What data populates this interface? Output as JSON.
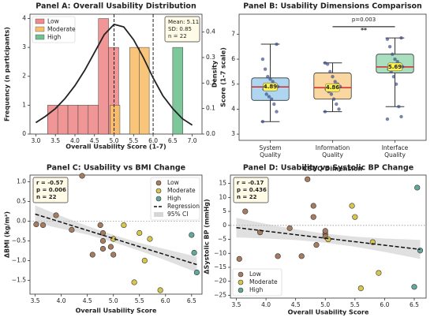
{
  "chart_data": [
    {
      "type": "histogram",
      "title": "Panel A: Overall Usability Distribution",
      "xlabel": "Overall Usability Score (1-7)",
      "ylabel": "Frequency (n participants)",
      "y2label": "Density",
      "xlim": [
        2.85,
        7.25
      ],
      "xticks": [
        {
          "value": 3,
          "label": "3.0"
        },
        3.5,
        {
          "value": 4,
          "label": "4.0"
        },
        4.5,
        {
          "value": 5,
          "label": "5.0"
        },
        5.5,
        {
          "value": 6,
          "label": "6.0"
        },
        6.5,
        {
          "value": 7,
          "label": "7.0"
        }
      ],
      "ylim": [
        0,
        4.15
      ],
      "yticks": [
        0,
        1,
        2,
        3,
        4
      ],
      "y2lim": [
        0,
        0.47
      ],
      "y2ticks": [
        {
          "value": 0,
          "label": "0.0"
        },
        0.1,
        0.2,
        0.3,
        0.4
      ],
      "series": [
        {
          "name": "Low",
          "color": "#ef8b8b",
          "bins": [
            3.3,
            3.56,
            3.82,
            4.08,
            4.34,
            4.6,
            4.86,
            5.12
          ],
          "values": [
            1,
            1,
            1,
            1,
            1,
            4,
            3
          ]
        },
        {
          "name": "Moderate",
          "color": "#f7bf6b",
          "bins": [
            4.9,
            5.15,
            5.4,
            5.65,
            5.9
          ],
          "values": [
            1,
            0,
            3,
            3
          ]
        },
        {
          "name": "High",
          "color": "#6fc18f",
          "bins": [
            6.5,
            6.76
          ],
          "values": [
            3
          ]
        }
      ],
      "density": {
        "color": "#222222",
        "axis": "y2",
        "x": [
          3.0,
          3.25,
          3.5,
          3.75,
          4.0,
          4.25,
          4.5,
          4.75,
          5.0,
          5.25,
          5.5,
          5.75,
          6.0,
          6.25,
          6.5,
          6.75,
          7.0
        ],
        "values": [
          0.045,
          0.07,
          0.1,
          0.14,
          0.19,
          0.25,
          0.32,
          0.39,
          0.43,
          0.42,
          0.37,
          0.3,
          0.22,
          0.15,
          0.1,
          0.06,
          0.035
        ]
      },
      "vlines": [
        5.0,
        6.0
      ],
      "stats": [
        "Mean: 5.11",
        "SD: 0.85",
        "n = 22"
      ],
      "legend": "upper left"
    },
    {
      "type": "box",
      "title": "Panel B: Usability Dimensions Comparison",
      "xlabel": "CSUQ Dimension",
      "ylabel": "Score (1-7 scale)",
      "categories": [
        "System Quality",
        "Information Quality",
        "Interface Quality"
      ],
      "ylim": [
        2.75,
        7.8
      ],
      "yticks": [
        3,
        4,
        5,
        6,
        7
      ],
      "point_color": "#34447f",
      "median_color": "#d62728",
      "boxes": [
        {
          "color": "#aed6f1",
          "whislo": 3.5,
          "q1": 4.35,
          "med": 4.89,
          "q3": 5.25,
          "whishi": 6.6,
          "points": [
            3.5,
            3.9,
            4.2,
            4.4,
            4.5,
            4.6,
            4.8,
            4.9,
            5.0,
            5.1,
            5.2,
            5.3,
            5.6,
            6.0,
            6.6
          ]
        },
        {
          "color": "#fad7a0",
          "whislo": 3.9,
          "q1": 4.4,
          "med": 4.86,
          "q3": 5.45,
          "whishi": 5.85,
          "points": [
            3.9,
            4.0,
            4.2,
            4.4,
            4.6,
            4.7,
            4.8,
            4.9,
            5.0,
            5.1,
            5.3,
            5.5,
            5.8,
            5.85
          ]
        },
        {
          "color": "#a9dfbf",
          "whislo": 4.1,
          "q1": 5.45,
          "med": 5.69,
          "q3": 6.2,
          "whishi": 6.85,
          "points": [
            3.6,
            3.7,
            4.1,
            5.0,
            5.3,
            5.5,
            5.6,
            5.7,
            5.8,
            5.9,
            6.0,
            6.2,
            6.5,
            6.8,
            6.85
          ]
        }
      ],
      "significance": {
        "from": 1,
        "to": 2,
        "y": 7.3,
        "label": "p=0.003",
        "stars": "**"
      }
    },
    {
      "type": "scatter",
      "title": "Panel C: Usability vs BMI Change",
      "xlabel": "Overall Usability Score",
      "ylabel": "ΔBMI (kg/m²)",
      "xlim": [
        3.4,
        6.7
      ],
      "xticks": [
        3.5,
        {
          "value": 4,
          "label": "4.0"
        },
        4.5,
        {
          "value": 5,
          "label": "5.0"
        },
        5.5,
        {
          "value": 6,
          "label": "6.0"
        },
        6.5
      ],
      "ylim": [
        -1.85,
        1.17
      ],
      "yticks": [
        {
          "value": 1,
          "label": "1.0"
        },
        0.5,
        {
          "value": 0,
          "label": "0.0"
        },
        {
          "value": -0.5,
          "label": "−0.5"
        },
        {
          "value": -1,
          "label": "−1.0"
        },
        {
          "value": -1.5,
          "label": "−1.5"
        }
      ],
      "hline": 0,
      "series": [
        {
          "name": "Low",
          "color": "#a57c5f",
          "x": [
            3.52,
            3.65,
            3.9,
            4.2,
            4.4,
            4.6,
            4.75,
            4.8,
            4.8,
            4.8,
            4.95,
            5.0
          ],
          "values": [
            -0.08,
            -0.1,
            0.15,
            -0.22,
            1.15,
            -0.85,
            -0.1,
            -0.3,
            -0.5,
            -0.7,
            -0.65,
            -0.85
          ]
        },
        {
          "name": "Moderate",
          "color": "#d6c64e",
          "x": [
            5.0,
            5.2,
            5.4,
            5.5,
            5.6,
            5.7,
            5.9
          ],
          "values": [
            -0.45,
            -0.1,
            -1.55,
            -0.3,
            -1.0,
            -0.45,
            -1.75
          ]
        },
        {
          "name": "High",
          "color": "#62a89c",
          "x": [
            6.5,
            6.55,
            6.6
          ],
          "values": [
            -0.35,
            -0.8,
            -1.3
          ]
        }
      ],
      "regression": {
        "name": "Regression",
        "x": [
          3.5,
          6.6
        ],
        "values": [
          0.18,
          -1.1
        ]
      },
      "ci": {
        "name": "95% CI",
        "x": [
          3.5,
          4.0,
          4.5,
          5.0,
          5.5,
          6.0,
          6.6
        ],
        "lower": [
          -0.04,
          -0.19,
          -0.34,
          -0.53,
          -0.75,
          -0.99,
          -1.3
        ],
        "upper": [
          0.4,
          0.13,
          -0.12,
          -0.35,
          -0.55,
          -0.71,
          -0.9
        ]
      },
      "stats": [
        "r = -0.57",
        "p = 0.006",
        "n = 22"
      ],
      "legend": "upper right"
    },
    {
      "type": "scatter",
      "title": "Panel D: Usability vs Systolic BP Change",
      "xlabel": "Overall Usability Score",
      "ylabel": "ΔSystolic BP (mmHg)",
      "xlim": [
        3.4,
        6.7
      ],
      "xticks": [
        3.5,
        {
          "value": 4,
          "label": "4.0"
        },
        4.5,
        {
          "value": 5,
          "label": "5.0"
        },
        5.5,
        {
          "value": 6,
          "label": "6.0"
        },
        6.5
      ],
      "ylim": [
        -26,
        18
      ],
      "yticks": [
        15,
        10,
        5,
        0,
        {
          "value": -5,
          "label": "−5"
        },
        {
          "value": -10,
          "label": "−10"
        },
        {
          "value": -15,
          "label": "−15"
        },
        {
          "value": -20,
          "label": "−20"
        },
        {
          "value": -25,
          "label": "−25"
        }
      ],
      "hline": 0,
      "series": [
        {
          "name": "Low",
          "color": "#a57c5f",
          "x": [
            3.55,
            3.65,
            3.9,
            4.2,
            4.4,
            4.6,
            4.7,
            4.8,
            4.8,
            4.85,
            5.0,
            5.0,
            5.0
          ],
          "values": [
            -12,
            5,
            -2.5,
            -11,
            -1,
            -11,
            16.5,
            7,
            3,
            -7,
            -3,
            -4,
            -2
          ]
        },
        {
          "name": "Moderate",
          "color": "#d6c64e",
          "x": [
            5.05,
            5.45,
            5.5,
            5.6,
            5.8,
            5.9
          ],
          "values": [
            -5,
            7,
            3,
            -22.5,
            -6,
            -17
          ]
        },
        {
          "name": "High",
          "color": "#62a89c",
          "x": [
            6.55,
            6.6,
            6.5
          ],
          "values": [
            13.5,
            -9,
            -22
          ]
        }
      ],
      "regression": {
        "name": "Regression",
        "x": [
          3.5,
          6.6
        ],
        "values": [
          -0.8,
          -8.6
        ]
      },
      "ci": {
        "name": "95% CI",
        "x": [
          3.5,
          4.0,
          4.5,
          5.0,
          5.5,
          6.0,
          6.6
        ],
        "lower": [
          -4.3,
          -4.66,
          -5.22,
          -6.18,
          -7.64,
          -9.5,
          -12.0
        ],
        "upper": [
          2.7,
          0.54,
          -1.42,
          -2.98,
          -4.04,
          -4.7,
          -5.2
        ]
      },
      "stats": [
        "r = -0.17",
        "p = 0.436",
        "n = 22"
      ],
      "legend": "lower left",
      "legend_items": "series"
    }
  ]
}
